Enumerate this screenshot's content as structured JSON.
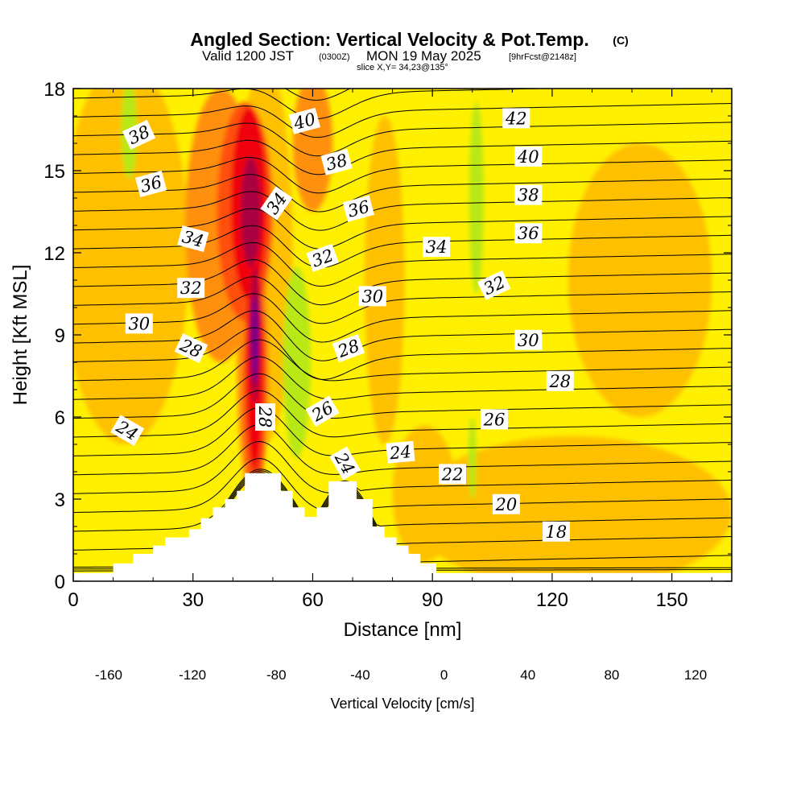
{
  "header": {
    "title": "Angled Section: Vertical Velocity & Pot.Temp.",
    "title_mark": "(C)",
    "valid_prefix": "Valid 1200 JST",
    "valid_zulu": "(0300Z)",
    "valid_date": "MON 19 May 2025",
    "valid_fcst": "[9hrFcst@2148z]",
    "slice": "slice X,Y= 34,23@135°"
  },
  "chart_data": {
    "type": "heatmap",
    "title": "Angled Section: Vertical Velocity & Pot.Temp.",
    "xlabel": "Distance [nm]",
    "ylabel": "Height [Kft MSL]",
    "xlim": [
      0,
      165
    ],
    "ylim": [
      0,
      18
    ],
    "x_ticks": [
      "0",
      "30",
      "60",
      "90",
      "120",
      "150"
    ],
    "y_ticks": [
      "0",
      "3",
      "6",
      "9",
      "12",
      "15",
      "18"
    ],
    "colorbar": {
      "label": "Vertical Velocity [cm/s]",
      "tick_labels": [
        "-160",
        "-120",
        "-80",
        "-40",
        "0",
        "40",
        "80",
        "120"
      ],
      "levels": [
        -160,
        -140,
        -120,
        -100,
        -80,
        -60,
        -40,
        -20,
        0,
        20,
        40,
        60,
        80,
        100,
        120
      ],
      "colors": [
        "#0000ff",
        "#0a6cf0",
        "#00d8f0",
        "#00d890",
        "#18a820",
        "#58b818",
        "#b8e818",
        "#fff000",
        "#ffc000",
        "#ff9010",
        "#ff5010",
        "#f00010",
        "#a80040",
        "#6a0090"
      ]
    },
    "terrain_kft": [
      [
        0,
        0.3
      ],
      [
        10,
        0.3
      ],
      [
        10,
        0.65
      ],
      [
        15,
        0.65
      ],
      [
        15,
        1.0
      ],
      [
        20,
        1.0
      ],
      [
        20,
        1.3
      ],
      [
        23,
        1.3
      ],
      [
        23,
        1.6
      ],
      [
        29,
        1.6
      ],
      [
        29,
        1.9
      ],
      [
        32,
        1.9
      ],
      [
        32,
        2.3
      ],
      [
        35,
        2.3
      ],
      [
        35,
        2.7
      ],
      [
        38,
        2.7
      ],
      [
        38,
        3.0
      ],
      [
        41,
        3.0
      ],
      [
        41,
        3.3
      ],
      [
        43,
        3.3
      ],
      [
        43,
        3.95
      ],
      [
        52,
        3.95
      ],
      [
        52,
        3.3
      ],
      [
        55,
        3.3
      ],
      [
        55,
        2.7
      ],
      [
        58,
        2.7
      ],
      [
        58,
        2.35
      ],
      [
        61,
        2.35
      ],
      [
        61,
        2.7
      ],
      [
        64,
        2.7
      ],
      [
        64,
        3.65
      ],
      [
        71,
        3.65
      ],
      [
        71,
        3.0
      ],
      [
        75,
        3.0
      ],
      [
        75,
        2.0
      ],
      [
        78,
        2.0
      ],
      [
        78,
        1.6
      ],
      [
        81,
        1.6
      ],
      [
        81,
        1.3
      ],
      [
        84,
        1.3
      ],
      [
        84,
        1.0
      ],
      [
        87,
        1.0
      ],
      [
        87,
        0.65
      ],
      [
        91,
        0.65
      ],
      [
        91,
        0.3
      ],
      [
        165,
        0.3
      ]
    ],
    "vertical_velocity_features": [
      {
        "name": "updraft-core",
        "x": 45,
        "y": 9.0,
        "max_cm_s": 120
      },
      {
        "name": "downdraft-lee",
        "x": 56,
        "y": 8.0,
        "min_cm_s": -40
      },
      {
        "name": "downdraft-upper-left",
        "x": 14,
        "y": 16,
        "min_cm_s": -40
      },
      {
        "name": "downdraft-right-column",
        "x": 101,
        "y": 14,
        "min_cm_s": -40
      }
    ],
    "potential_temperature_labels": [
      {
        "value": "38",
        "x": 16.5,
        "y": 16.3,
        "angle": 25
      },
      {
        "value": "36",
        "x": 19.5,
        "y": 14.5,
        "angle": 15
      },
      {
        "value": "34",
        "x": 30,
        "y": 12.5,
        "angle": -15
      },
      {
        "value": "32",
        "x": 29.5,
        "y": 10.7,
        "angle": 0
      },
      {
        "value": "30",
        "x": 16.5,
        "y": 9.4,
        "angle": 0
      },
      {
        "value": "28",
        "x": 29.5,
        "y": 8.5,
        "angle": -25
      },
      {
        "value": "24",
        "x": 13.5,
        "y": 5.5,
        "angle": -30
      },
      {
        "value": "40",
        "x": 58,
        "y": 16.8,
        "angle": 15
      },
      {
        "value": "34",
        "x": 51,
        "y": 13.8,
        "angle": 55
      },
      {
        "value": "38",
        "x": 66,
        "y": 15.3,
        "angle": 15
      },
      {
        "value": "36",
        "x": 71.5,
        "y": 13.6,
        "angle": 15
      },
      {
        "value": "32",
        "x": 62.5,
        "y": 11.8,
        "angle": 20
      },
      {
        "value": "30",
        "x": 75,
        "y": 10.4,
        "angle": 0
      },
      {
        "value": "28",
        "x": 69,
        "y": 8.5,
        "angle": 20
      },
      {
        "value": "26",
        "x": 62.5,
        "y": 6.2,
        "angle": 30
      },
      {
        "value": "28",
        "x": 48,
        "y": 6.0,
        "angle": -90
      },
      {
        "value": "24",
        "x": 68,
        "y": 4.3,
        "angle": -60
      },
      {
        "value": "34",
        "x": 91,
        "y": 12.2,
        "angle": 0
      },
      {
        "value": "32",
        "x": 105.5,
        "y": 10.8,
        "angle": 25
      },
      {
        "value": "24",
        "x": 82,
        "y": 4.7,
        "angle": 5
      },
      {
        "value": "22",
        "x": 95,
        "y": 3.9,
        "angle": 0
      },
      {
        "value": "42",
        "x": 111,
        "y": 16.9,
        "angle": 0
      },
      {
        "value": "40",
        "x": 114,
        "y": 15.5,
        "angle": 0
      },
      {
        "value": "38",
        "x": 114,
        "y": 14.1,
        "angle": 0
      },
      {
        "value": "36",
        "x": 114,
        "y": 12.7,
        "angle": 0
      },
      {
        "value": "30",
        "x": 114,
        "y": 8.8,
        "angle": 0
      },
      {
        "value": "28",
        "x": 122,
        "y": 7.3,
        "angle": 0
      },
      {
        "value": "26",
        "x": 105.5,
        "y": 5.9,
        "angle": 0
      },
      {
        "value": "20",
        "x": 108.5,
        "y": 2.8,
        "angle": 0
      },
      {
        "value": "18",
        "x": 121,
        "y": 1.8,
        "angle": 0
      }
    ],
    "grid": false,
    "legend": "bottom"
  }
}
